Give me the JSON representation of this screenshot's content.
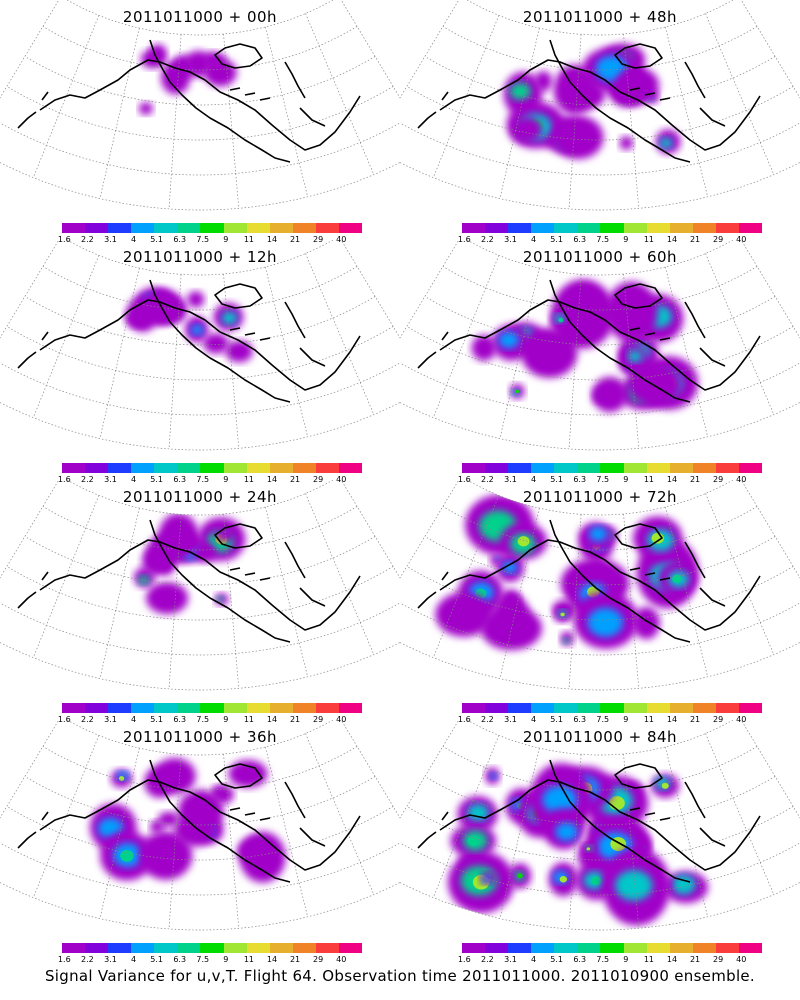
{
  "panels": [
    {
      "title": "2011011000 + 00h",
      "spread": 0.2,
      "intensity": 0.15
    },
    {
      "title": "2011011000 + 12h",
      "spread": 0.3,
      "intensity": 0.25
    },
    {
      "title": "2011011000 + 24h",
      "spread": 0.4,
      "intensity": 0.35
    },
    {
      "title": "2011011000 + 36h",
      "spread": 0.55,
      "intensity": 0.45
    },
    {
      "title": "2011011000 + 48h",
      "spread": 0.65,
      "intensity": 0.5
    },
    {
      "title": "2011011000 + 60h",
      "spread": 0.75,
      "intensity": 0.55
    },
    {
      "title": "2011011000 + 72h",
      "spread": 0.85,
      "intensity": 0.65
    },
    {
      "title": "2011011000 + 84h",
      "spread": 1.0,
      "intensity": 0.75
    }
  ],
  "colorbar": {
    "colors": [
      "#a000c8",
      "#8200dc",
      "#1e3cff",
      "#00a0ff",
      "#00c8c8",
      "#00d28c",
      "#00dc00",
      "#a0e632",
      "#e6dc32",
      "#e6af2d",
      "#f08228",
      "#fa3c3c",
      "#f00082"
    ],
    "tick_labels": [
      "1.6",
      "2.2",
      "3.1",
      "4",
      "5.1",
      "6.3",
      "7.5",
      "9",
      "11",
      "14",
      "21",
      "29",
      "40"
    ]
  },
  "caption": "Signal Variance for u,v,T. Flight 64. Observation time 2011011000. 2011010900 ensemble."
}
